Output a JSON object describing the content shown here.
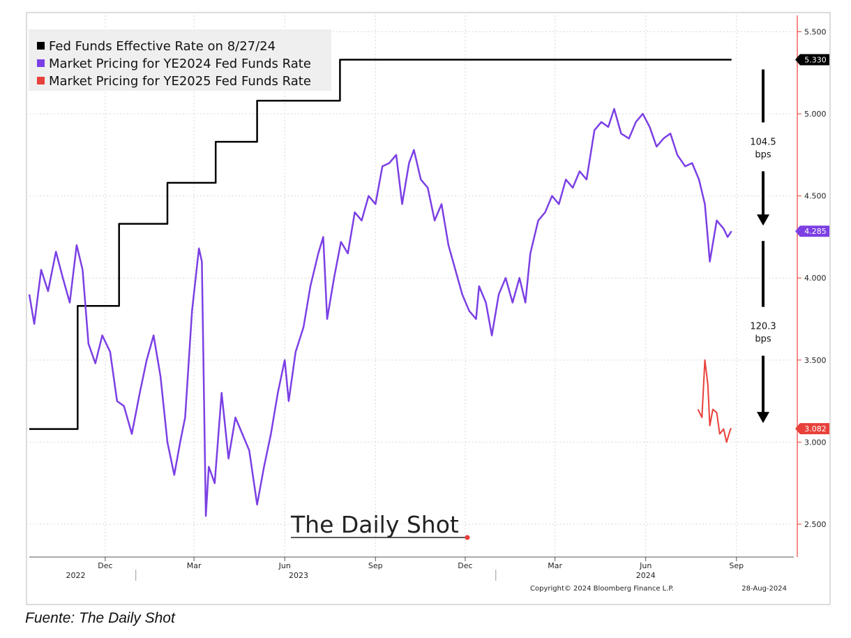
{
  "chart_data": {
    "type": "line",
    "y_axis": {
      "side": "right",
      "range": [
        2.3,
        5.6
      ],
      "ticks": [
        "5.500",
        "5.000",
        "4.500",
        "4.000",
        "3.500",
        "3.000",
        "2.500"
      ],
      "tick_values": [
        5.5,
        5.0,
        4.5,
        4.0,
        3.5,
        3.0,
        2.5
      ],
      "grid": true
    },
    "x_axis": {
      "range": [
        "2022-09-15",
        "2024-10-15"
      ],
      "month_ticks": [
        {
          "label": "Dec",
          "date": "2022-12-01"
        },
        {
          "label": "Mar",
          "date": "2023-03-01"
        },
        {
          "label": "Jun",
          "date": "2023-06-01"
        },
        {
          "label": "Sep",
          "date": "2023-09-01"
        },
        {
          "label": "Dec",
          "date": "2023-12-01"
        },
        {
          "label": "Mar",
          "date": "2024-03-01"
        },
        {
          "label": "Jun",
          "date": "2024-06-01"
        },
        {
          "label": "Sep",
          "date": "2024-09-01"
        }
      ],
      "year_labels": [
        {
          "label": "2022",
          "date": "2022-11-01"
        },
        {
          "label": "2023",
          "date": "2023-06-15"
        },
        {
          "label": "2024",
          "date": "2024-06-01"
        }
      ],
      "year_dividers": [
        "2023-01-01",
        "2024-01-01"
      ]
    },
    "legend": {
      "position": "top-left",
      "entries": [
        {
          "label": "Fed Funds Effective Rate on 8/27/24",
          "color": "#000000"
        },
        {
          "label": "Market Pricing for YE2024 Fed Funds Rate",
          "color": "#7b3fe4"
        },
        {
          "label": "Market Pricing for YE2025 Fed Funds Rate",
          "color": "#e8403a"
        }
      ]
    },
    "series": [
      {
        "color": "#000000",
        "step": true,
        "points": [
          [
            "2022-09-15",
            3.08
          ],
          [
            "2022-11-03",
            3.83
          ],
          [
            "2022-12-15",
            4.33
          ],
          [
            "2023-02-02",
            4.58
          ],
          [
            "2023-03-23",
            4.83
          ],
          [
            "2023-05-04",
            5.08
          ],
          [
            "2023-07-27",
            5.33
          ],
          [
            "2024-08-27",
            5.33
          ]
        ]
      },
      {
        "color": "#7b3fe4",
        "points": [
          [
            "2022-09-15",
            3.9
          ],
          [
            "2022-09-20",
            3.72
          ],
          [
            "2022-09-27",
            4.05
          ],
          [
            "2022-10-04",
            3.92
          ],
          [
            "2022-10-12",
            4.16
          ],
          [
            "2022-10-19",
            4.0
          ],
          [
            "2022-10-26",
            3.85
          ],
          [
            "2022-11-02",
            4.2
          ],
          [
            "2022-11-08",
            4.05
          ],
          [
            "2022-11-14",
            3.6
          ],
          [
            "2022-11-21",
            3.48
          ],
          [
            "2022-11-28",
            3.65
          ],
          [
            "2022-12-06",
            3.55
          ],
          [
            "2022-12-13",
            3.25
          ],
          [
            "2022-12-20",
            3.22
          ],
          [
            "2022-12-28",
            3.05
          ],
          [
            "2023-01-05",
            3.3
          ],
          [
            "2023-01-12",
            3.5
          ],
          [
            "2023-01-19",
            3.65
          ],
          [
            "2023-01-26",
            3.4
          ],
          [
            "2023-02-02",
            3.0
          ],
          [
            "2023-02-09",
            2.8
          ],
          [
            "2023-02-15",
            3.0
          ],
          [
            "2023-02-20",
            3.15
          ],
          [
            "2023-02-27",
            3.8
          ],
          [
            "2023-03-06",
            4.18
          ],
          [
            "2023-03-09",
            4.1
          ],
          [
            "2023-03-13",
            2.55
          ],
          [
            "2023-03-16",
            2.85
          ],
          [
            "2023-03-22",
            2.75
          ],
          [
            "2023-03-29",
            3.3
          ],
          [
            "2023-04-05",
            2.9
          ],
          [
            "2023-04-12",
            3.15
          ],
          [
            "2023-04-19",
            3.05
          ],
          [
            "2023-04-26",
            2.95
          ],
          [
            "2023-05-04",
            2.62
          ],
          [
            "2023-05-11",
            2.85
          ],
          [
            "2023-05-18",
            3.05
          ],
          [
            "2023-05-25",
            3.3
          ],
          [
            "2023-06-01",
            3.5
          ],
          [
            "2023-06-05",
            3.25
          ],
          [
            "2023-06-12",
            3.55
          ],
          [
            "2023-06-20",
            3.7
          ],
          [
            "2023-06-27",
            3.95
          ],
          [
            "2023-07-05",
            4.15
          ],
          [
            "2023-07-10",
            4.25
          ],
          [
            "2023-07-14",
            3.75
          ],
          [
            "2023-07-21",
            4.0
          ],
          [
            "2023-07-28",
            4.22
          ],
          [
            "2023-08-04",
            4.15
          ],
          [
            "2023-08-11",
            4.4
          ],
          [
            "2023-08-18",
            4.35
          ],
          [
            "2023-08-25",
            4.5
          ],
          [
            "2023-09-01",
            4.45
          ],
          [
            "2023-09-08",
            4.68
          ],
          [
            "2023-09-15",
            4.7
          ],
          [
            "2023-09-22",
            4.75
          ],
          [
            "2023-09-28",
            4.45
          ],
          [
            "2023-10-05",
            4.7
          ],
          [
            "2023-10-10",
            4.78
          ],
          [
            "2023-10-17",
            4.6
          ],
          [
            "2023-10-24",
            4.55
          ],
          [
            "2023-10-31",
            4.35
          ],
          [
            "2023-11-07",
            4.45
          ],
          [
            "2023-11-14",
            4.2
          ],
          [
            "2023-11-21",
            4.05
          ],
          [
            "2023-11-28",
            3.9
          ],
          [
            "2023-12-05",
            3.8
          ],
          [
            "2023-12-12",
            3.75
          ],
          [
            "2023-12-15",
            3.95
          ],
          [
            "2023-12-22",
            3.85
          ],
          [
            "2023-12-28",
            3.65
          ],
          [
            "2024-01-04",
            3.9
          ],
          [
            "2024-01-11",
            4.0
          ],
          [
            "2024-01-18",
            3.85
          ],
          [
            "2024-01-25",
            4.0
          ],
          [
            "2024-01-31",
            3.85
          ],
          [
            "2024-02-05",
            4.15
          ],
          [
            "2024-02-13",
            4.35
          ],
          [
            "2024-02-20",
            4.4
          ],
          [
            "2024-02-27",
            4.5
          ],
          [
            "2024-03-05",
            4.45
          ],
          [
            "2024-03-12",
            4.6
          ],
          [
            "2024-03-19",
            4.55
          ],
          [
            "2024-03-26",
            4.65
          ],
          [
            "2024-04-02",
            4.6
          ],
          [
            "2024-04-10",
            4.9
          ],
          [
            "2024-04-17",
            4.95
          ],
          [
            "2024-04-24",
            4.92
          ],
          [
            "2024-04-30",
            5.03
          ],
          [
            "2024-05-07",
            4.88
          ],
          [
            "2024-05-15",
            4.85
          ],
          [
            "2024-05-22",
            4.95
          ],
          [
            "2024-05-29",
            5.0
          ],
          [
            "2024-06-05",
            4.92
          ],
          [
            "2024-06-12",
            4.8
          ],
          [
            "2024-06-19",
            4.85
          ],
          [
            "2024-06-26",
            4.88
          ],
          [
            "2024-07-03",
            4.75
          ],
          [
            "2024-07-11",
            4.68
          ],
          [
            "2024-07-18",
            4.7
          ],
          [
            "2024-07-25",
            4.6
          ],
          [
            "2024-07-31",
            4.45
          ],
          [
            "2024-08-05",
            4.1
          ],
          [
            "2024-08-12",
            4.35
          ],
          [
            "2024-08-19",
            4.3
          ],
          [
            "2024-08-23",
            4.25
          ],
          [
            "2024-08-27",
            4.285
          ]
        ]
      },
      {
        "color": "#e8403a",
        "points": [
          [
            "2024-07-24",
            3.2
          ],
          [
            "2024-07-28",
            3.15
          ],
          [
            "2024-07-31",
            3.5
          ],
          [
            "2024-08-03",
            3.35
          ],
          [
            "2024-08-05",
            3.1
          ],
          [
            "2024-08-08",
            3.2
          ],
          [
            "2024-08-12",
            3.18
          ],
          [
            "2024-08-15",
            3.05
          ],
          [
            "2024-08-19",
            3.08
          ],
          [
            "2024-08-22",
            3.0
          ],
          [
            "2024-08-26",
            3.08
          ],
          [
            "2024-08-27",
            3.082
          ]
        ]
      }
    ],
    "value_tags": [
      {
        "text": "5.330",
        "value": 5.33,
        "bg": "#000000",
        "fg": "#ffffff"
      },
      {
        "text": "4.285",
        "value": 4.285,
        "bg": "#7b3fe4",
        "fg": "#ffffff"
      },
      {
        "text": "3.082",
        "value": 3.082,
        "bg": "#e8403a",
        "fg": "#ffffff"
      }
    ],
    "annotations": [
      {
        "line1": "104.5",
        "line2": "bps",
        "from": 5.33,
        "to": 4.285
      },
      {
        "line1": "120.3",
        "line2": "bps",
        "from": 4.285,
        "to": 3.082
      }
    ],
    "watermark": "The Daily Shot",
    "copyright": "Copyright© 2024 Bloomberg Finance L.P.",
    "date_stamp": "28-Aug-2024"
  },
  "source_note": "Fuente: The Daily Shot"
}
